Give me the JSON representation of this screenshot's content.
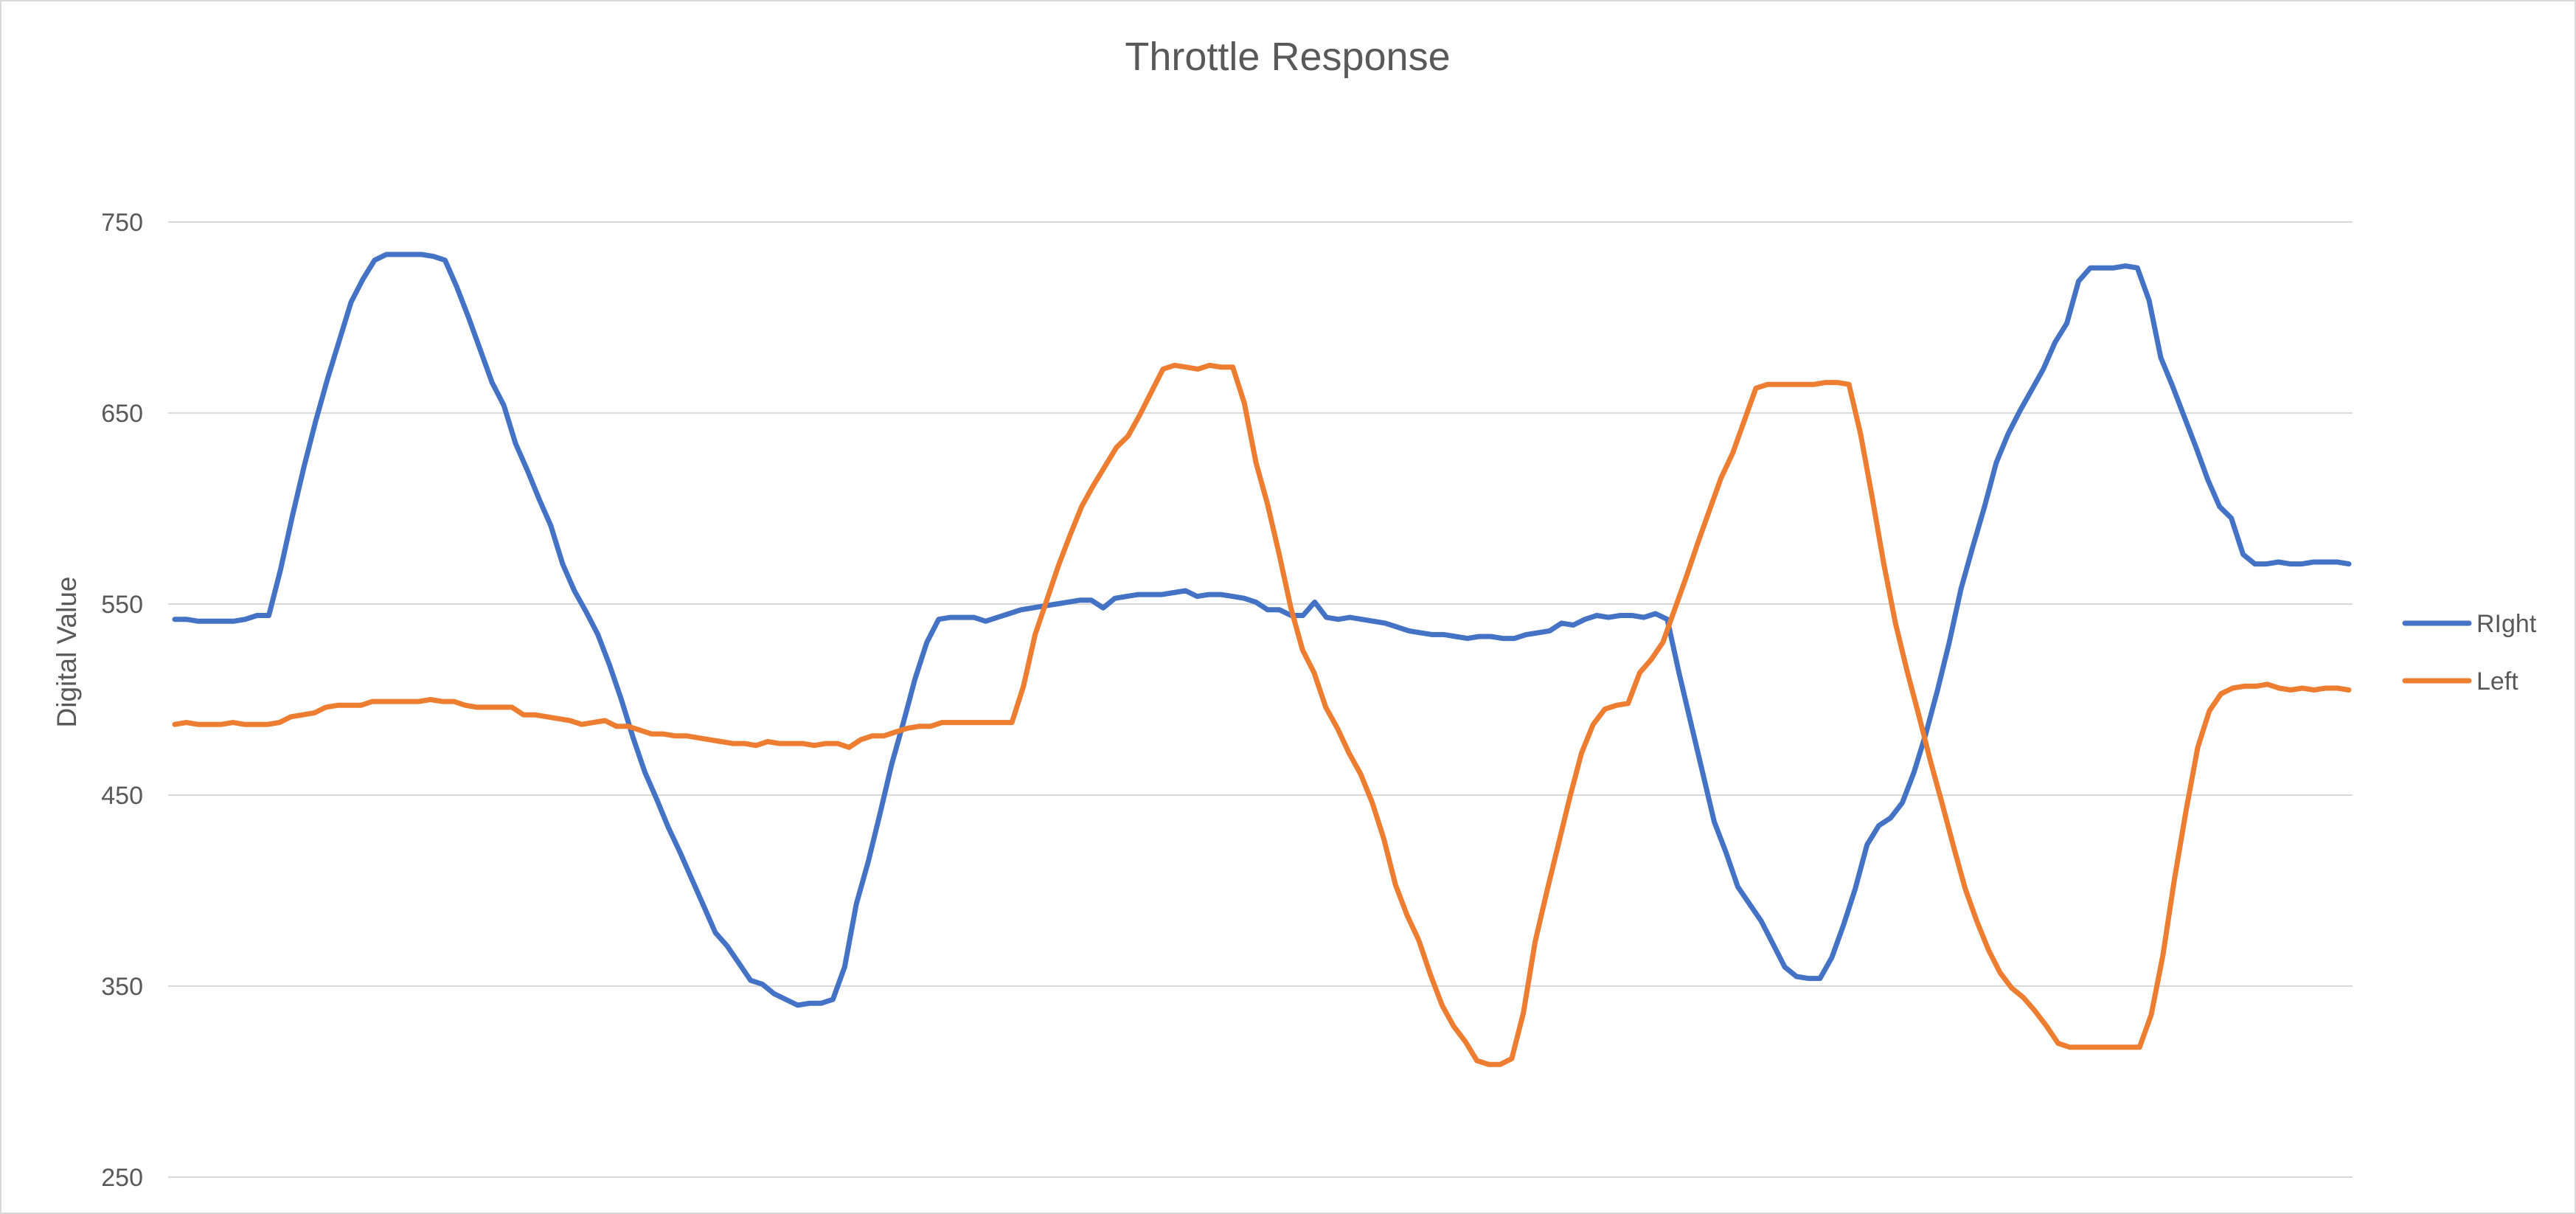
{
  "chart_data": {
    "type": "line",
    "title": "Throttle Response",
    "xlabel": "",
    "ylabel": "Digital Value",
    "ylim": [
      250,
      750
    ],
    "yticks": [
      "250",
      "350",
      "450",
      "550",
      "650",
      "750"
    ],
    "grid": true,
    "legend_position": "right",
    "series": [
      {
        "name": "RIght",
        "color": "#4472C4",
        "values": [
          542,
          542,
          541,
          541,
          541,
          541,
          542,
          544,
          544,
          568,
          596,
          622,
          646,
          668,
          688,
          708,
          720,
          730,
          733,
          733,
          733,
          733,
          732,
          730,
          716,
          700,
          683,
          666,
          654,
          634,
          620,
          605,
          591,
          571,
          557,
          546,
          534,
          518,
          500,
          480,
          462,
          448,
          433,
          420,
          406,
          392,
          378,
          371,
          362,
          353,
          351,
          346,
          343,
          340,
          341,
          341,
          343,
          360,
          393,
          415,
          440,
          466,
          488,
          511,
          530,
          542,
          543,
          543,
          543,
          541,
          543,
          545,
          547,
          548,
          549,
          550,
          551,
          552,
          552,
          548,
          553,
          554,
          555,
          555,
          555,
          556,
          557,
          554,
          555,
          555,
          554,
          553,
          551,
          547,
          547,
          544,
          544,
          551,
          543,
          542,
          543,
          542,
          541,
          540,
          538,
          536,
          535,
          534,
          534,
          533,
          532,
          533,
          533,
          532,
          532,
          534,
          535,
          536,
          540,
          539,
          542,
          544,
          543,
          544,
          544,
          543,
          545,
          542,
          514,
          488,
          462,
          436,
          420,
          402,
          393,
          384,
          372,
          360,
          355,
          354,
          354,
          365,
          382,
          401,
          424,
          434,
          438,
          446,
          462,
          482,
          505,
          530,
          558,
          580,
          601,
          624,
          639,
          651,
          662,
          673,
          687,
          697,
          719,
          726,
          726,
          726,
          727,
          726,
          709,
          679,
          664,
          648,
          632,
          615,
          601,
          595,
          576,
          571,
          571,
          572,
          571,
          571,
          572,
          572,
          572,
          571
        ]
      },
      {
        "name": "Left",
        "color": "#ED7D31",
        "values": [
          487,
          488,
          487,
          487,
          487,
          488,
          487,
          487,
          487,
          488,
          491,
          492,
          493,
          496,
          497,
          497,
          497,
          499,
          499,
          499,
          499,
          499,
          500,
          499,
          499,
          497,
          496,
          496,
          496,
          496,
          492,
          492,
          491,
          490,
          489,
          487,
          488,
          489,
          486,
          486,
          484,
          482,
          482,
          481,
          481,
          480,
          479,
          478,
          477,
          477,
          476,
          478,
          477,
          477,
          477,
          476,
          477,
          477,
          475,
          479,
          481,
          481,
          483,
          485,
          486,
          486,
          488,
          488,
          488,
          488,
          488,
          488,
          488,
          507,
          534,
          552,
          570,
          586,
          601,
          612,
          622,
          632,
          638,
          649,
          661,
          673,
          675,
          674,
          673,
          675,
          674,
          674,
          655,
          624,
          602,
          576,
          548,
          526,
          514,
          496,
          485,
          472,
          461,
          446,
          427,
          403,
          387,
          374,
          356,
          340,
          329,
          321,
          311,
          309,
          309,
          312,
          336,
          373,
          399,
          424,
          449,
          472,
          487,
          495,
          497,
          498,
          514,
          521,
          530,
          547,
          564,
          582,
          599,
          616,
          629,
          646,
          663,
          665,
          665,
          665,
          665,
          665,
          666,
          666,
          665,
          639,
          606,
          571,
          540,
          515,
          492,
          468,
          446,
          423,
          401,
          384,
          369,
          357,
          349,
          344,
          337,
          329,
          320,
          318,
          318,
          318,
          318,
          318,
          318,
          318,
          335,
          366,
          406,
          442,
          475,
          494,
          503,
          506,
          507,
          507,
          508,
          506,
          505,
          506,
          505,
          506,
          506,
          505
        ]
      }
    ]
  }
}
